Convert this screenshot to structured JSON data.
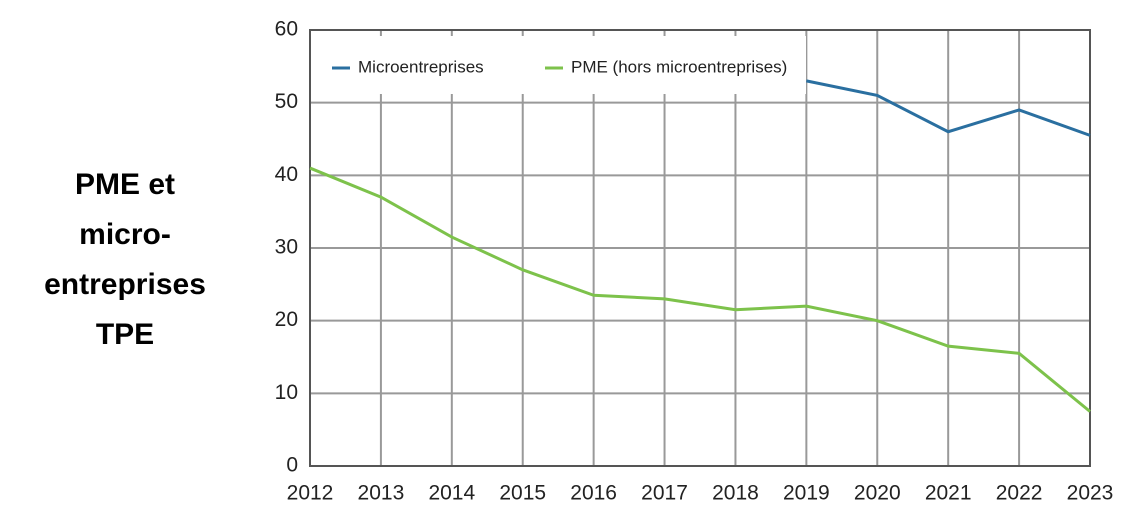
{
  "chart_data": {
    "type": "line",
    "annotation": [
      "PME et",
      "micro-",
      "entreprises",
      "TPE"
    ],
    "x": [
      2012,
      2013,
      2014,
      2015,
      2016,
      2017,
      2018,
      2019,
      2020,
      2021,
      2022,
      2023
    ],
    "series": [
      {
        "name": "Microentreprises",
        "color": "#2a6fa0",
        "values": [
          null,
          null,
          null,
          null,
          null,
          null,
          null,
          53,
          51,
          46,
          49,
          45.5
        ]
      },
      {
        "name": "PME (hors microentreprises)",
        "color": "#7dc24b",
        "values": [
          41,
          37,
          31.5,
          27,
          23.5,
          23,
          21.5,
          22,
          20,
          16.5,
          15.5,
          7.5
        ]
      }
    ],
    "xlim": [
      2012,
      2023
    ],
    "xticks": [
      2012,
      2013,
      2014,
      2015,
      2016,
      2017,
      2018,
      2019,
      2020,
      2021,
      2022,
      2023
    ],
    "ylim": [
      0,
      60
    ],
    "yticks": [
      0,
      10,
      20,
      30,
      40,
      50,
      60
    ],
    "grid": true,
    "legend": "top-left"
  }
}
